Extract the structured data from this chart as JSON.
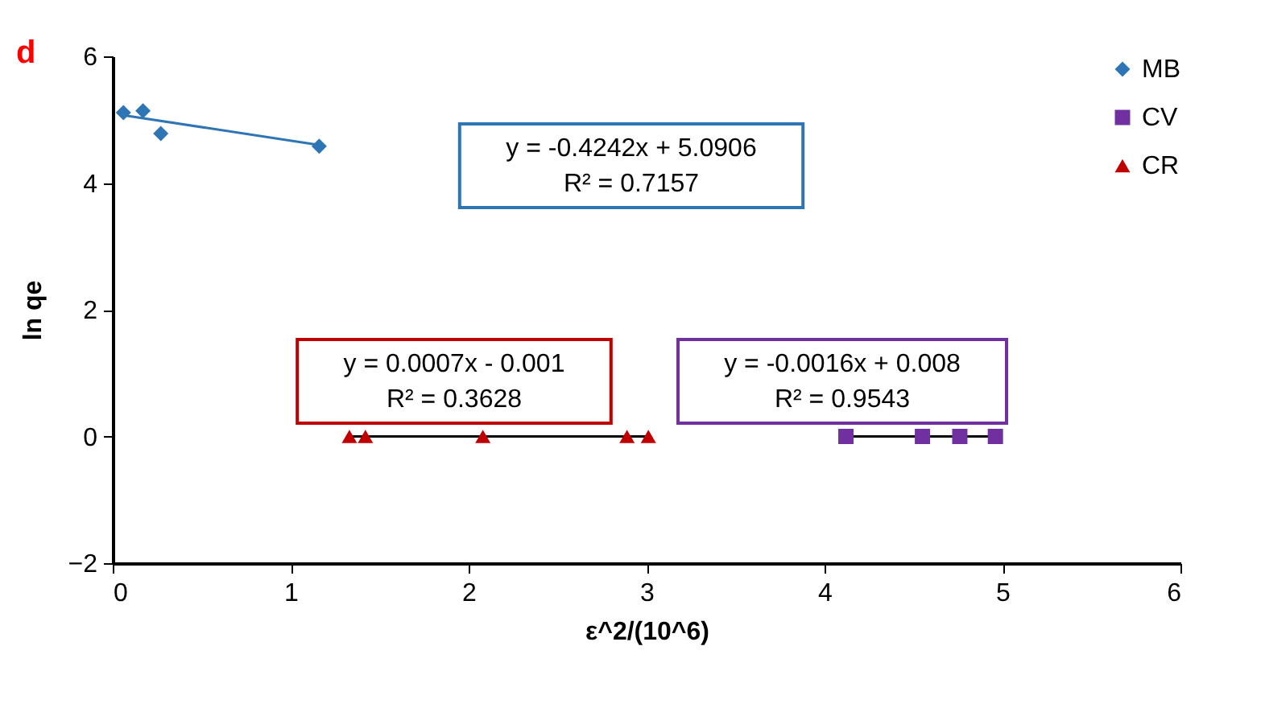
{
  "chart_data": {
    "type": "scatter",
    "title": "d",
    "xlabel": "ε^2/(10^6)",
    "ylabel": "ln qe",
    "xlim": [
      0,
      6
    ],
    "ylim": [
      -2,
      6
    ],
    "xticks": [
      0,
      1,
      2,
      3,
      4,
      5,
      6
    ],
    "yticks": [
      -2,
      0,
      2,
      4,
      6
    ],
    "grid": false,
    "legend": "top right",
    "series": [
      {
        "name": "MB",
        "color": "#2e75b6",
        "marker": "diamond",
        "x": [
          0.06,
          0.17,
          0.27,
          1.16
        ],
        "values": [
          5.11,
          5.14,
          4.78,
          4.58
        ]
      },
      {
        "name": "CV",
        "color": "#7030a0",
        "marker": "square",
        "x": [
          4.12,
          4.55,
          4.76,
          4.96
        ],
        "values": [
          0,
          0,
          0,
          0
        ]
      },
      {
        "name": "CR",
        "color": "#c00000",
        "marker": "triangle",
        "x": [
          1.33,
          1.42,
          2.08,
          2.89,
          3.01
        ],
        "values": [
          0,
          0,
          0,
          0,
          0
        ]
      },
      {
        "type": "line",
        "color": "#2e75b6",
        "x": [
          0.06,
          1.16
        ],
        "values": [
          5.07,
          4.6
        ]
      },
      {
        "type": "line",
        "color": "#000000",
        "x": [
          4.12,
          4.96
        ],
        "values": [
          0,
          0
        ]
      },
      {
        "type": "line",
        "color": "#000000",
        "x": [
          1.33,
          3.01
        ],
        "values": [
          0,
          0
        ]
      }
    ],
    "annotations": [
      "y = -0.4242x + 5.0906\nR² = 0.7157",
      "y = -0.0016x + 0.008\nR² = 0.9543",
      "y = 0.0007x - 0.001\nR² = 0.3628"
    ]
  }
}
